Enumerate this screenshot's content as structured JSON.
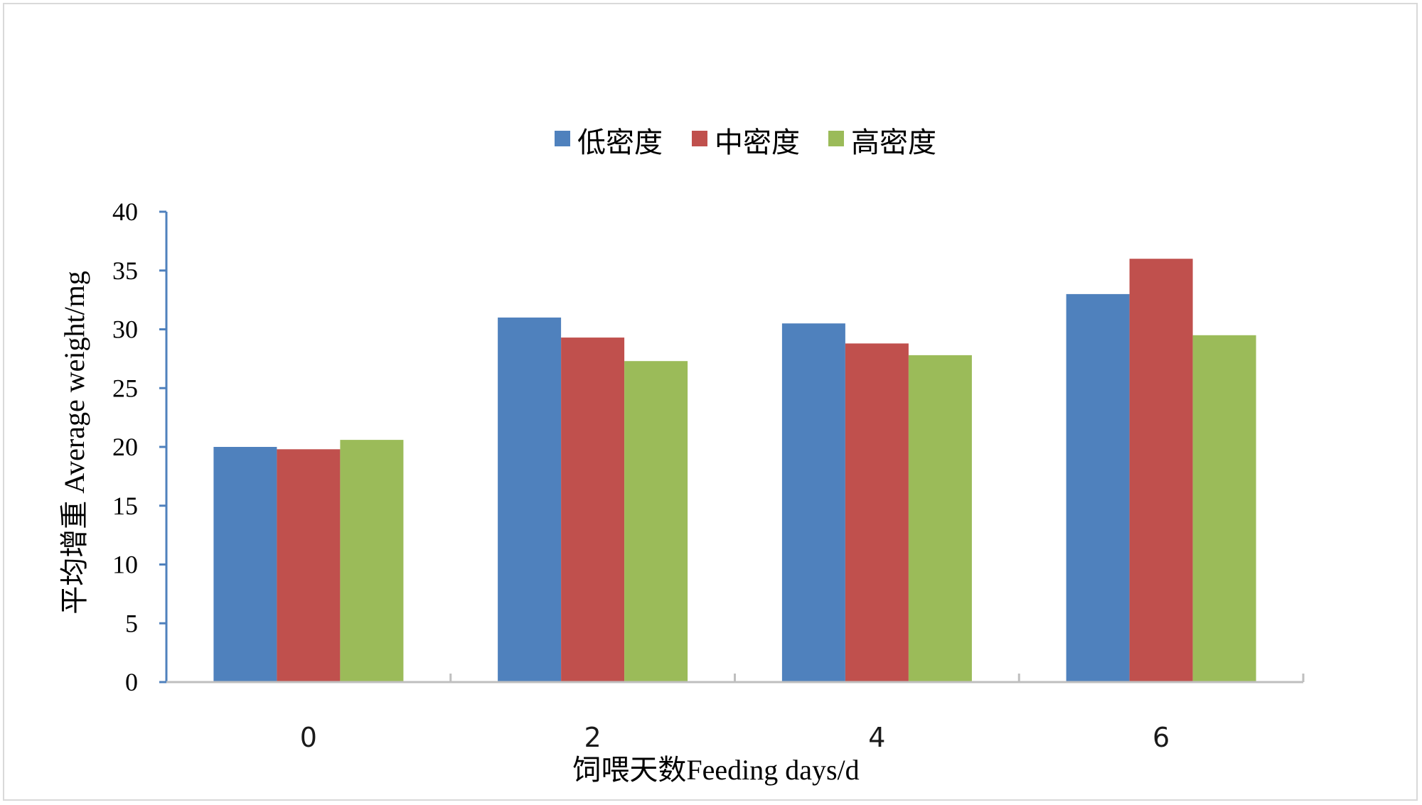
{
  "chart_data": {
    "type": "bar",
    "title": "",
    "xlabel": "饲喂天数Feeding days/d",
    "ylabel": "平均增重 Average weight/mg",
    "categories": [
      "0",
      "2",
      "4",
      "6"
    ],
    "series": [
      {
        "name": "低密度",
        "color": "#4f81bd",
        "values": [
          20,
          31,
          30.5,
          33
        ]
      },
      {
        "name": "中密度",
        "color": "#c0504d",
        "values": [
          19.8,
          29.3,
          28.8,
          36
        ]
      },
      {
        "name": "高密度",
        "color": "#9bbb59",
        "values": [
          20.6,
          27.3,
          27.8,
          29.5
        ]
      }
    ],
    "ylim": [
      0,
      40
    ],
    "yticks": [
      "0",
      "5",
      "10",
      "15",
      "20",
      "25",
      "30",
      "35",
      "40"
    ],
    "grid": false,
    "legend": "top-center",
    "axis_color": "#4f81bd",
    "xaxis_color": "#bfbfbf"
  }
}
